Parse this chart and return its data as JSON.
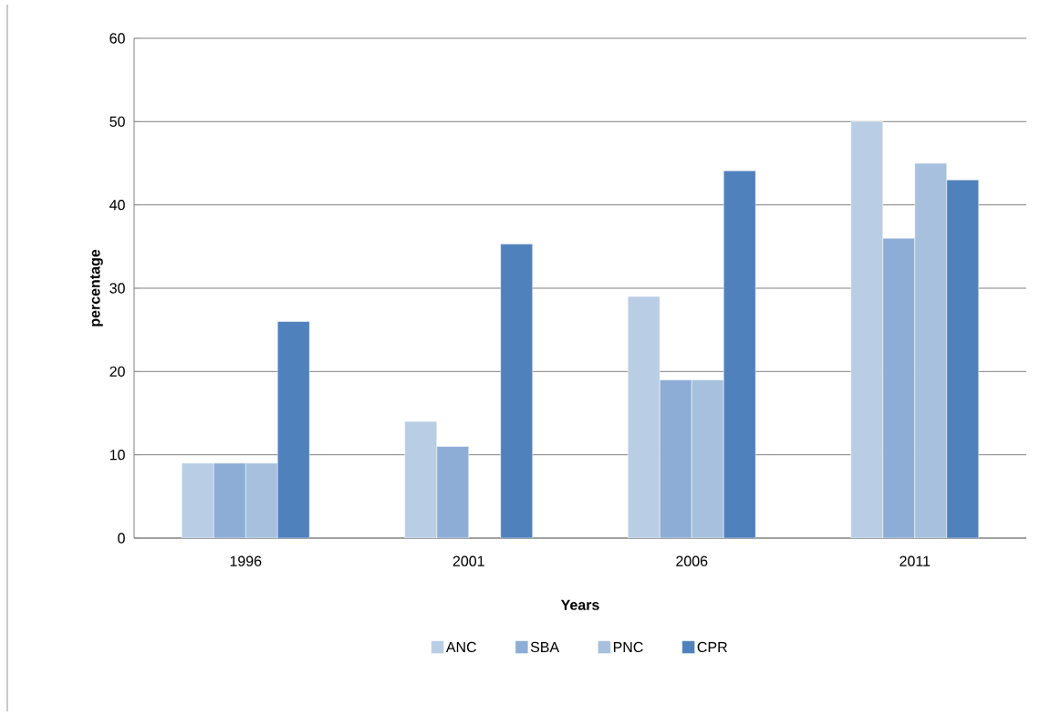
{
  "chart_data": {
    "type": "bar",
    "xlabel": "Years",
    "ylabel": "percentage",
    "categories": [
      "1996",
      "2001",
      "2006",
      "2011"
    ],
    "series": [
      {
        "name": "ANC",
        "color": "#b9cde5",
        "values": [
          9,
          14,
          29,
          50
        ]
      },
      {
        "name": "SBA",
        "color": "#8eadd6",
        "values": [
          9,
          11,
          19,
          36
        ]
      },
      {
        "name": "PNC",
        "color": "#a7c0de",
        "values": [
          9,
          null,
          19,
          45
        ]
      },
      {
        "name": "CPR",
        "color": "#4f81bd",
        "values": [
          26,
          35.3,
          44.1,
          43
        ]
      }
    ],
    "ylim": [
      0,
      60
    ],
    "yticks": [
      0,
      10,
      20,
      30,
      40,
      50,
      60
    ],
    "grid": "y",
    "legend": "bottom"
  }
}
